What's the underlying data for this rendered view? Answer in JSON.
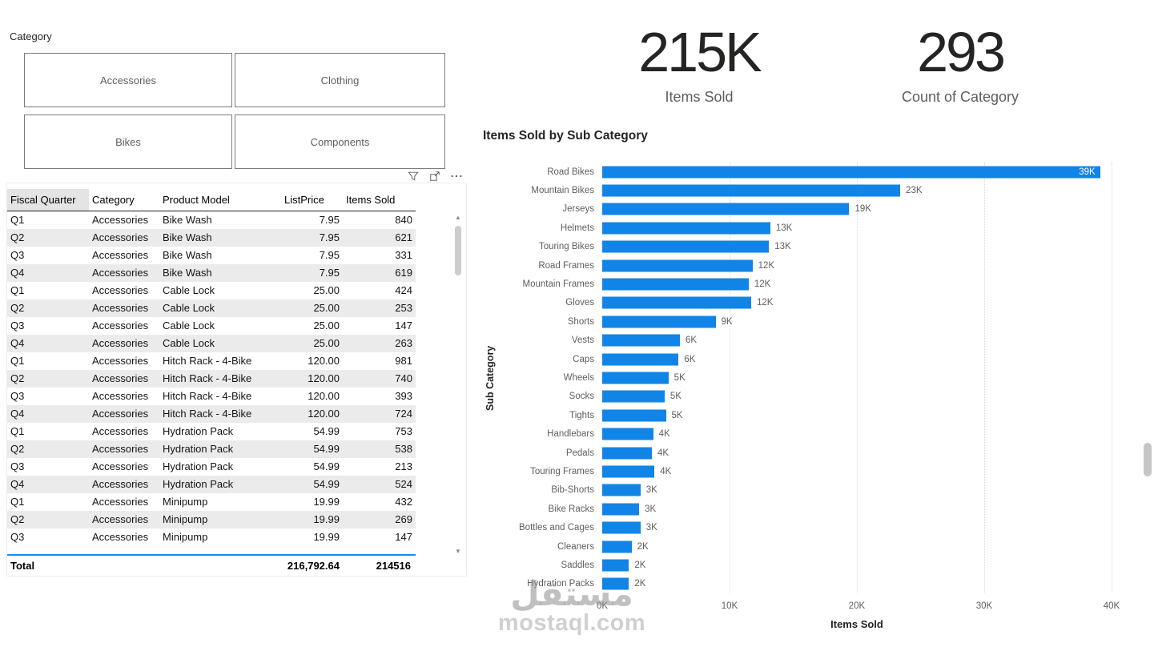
{
  "slicer": {
    "title": "Category",
    "items": [
      "Accessories",
      "Clothing",
      "Bikes",
      "Components"
    ]
  },
  "table_visual": {
    "visual_header_icons": [
      "filter",
      "focus-mode",
      "more-options"
    ],
    "columns": [
      {
        "label": "Fiscal Quarter",
        "align": "left"
      },
      {
        "label": "Category",
        "align": "left"
      },
      {
        "label": "Product Model",
        "align": "left"
      },
      {
        "label": "ListPrice",
        "align": "right"
      },
      {
        "label": "Items Sold",
        "align": "right"
      }
    ],
    "rows": [
      [
        "Q1",
        "Accessories",
        "Bike Wash",
        "7.95",
        "840"
      ],
      [
        "Q2",
        "Accessories",
        "Bike Wash",
        "7.95",
        "621"
      ],
      [
        "Q3",
        "Accessories",
        "Bike Wash",
        "7.95",
        "331"
      ],
      [
        "Q4",
        "Accessories",
        "Bike Wash",
        "7.95",
        "619"
      ],
      [
        "Q1",
        "Accessories",
        "Cable Lock",
        "25.00",
        "424"
      ],
      [
        "Q2",
        "Accessories",
        "Cable Lock",
        "25.00",
        "253"
      ],
      [
        "Q3",
        "Accessories",
        "Cable Lock",
        "25.00",
        "147"
      ],
      [
        "Q4",
        "Accessories",
        "Cable Lock",
        "25.00",
        "263"
      ],
      [
        "Q1",
        "Accessories",
        "Hitch Rack - 4-Bike",
        "120.00",
        "981"
      ],
      [
        "Q2",
        "Accessories",
        "Hitch Rack - 4-Bike",
        "120.00",
        "740"
      ],
      [
        "Q3",
        "Accessories",
        "Hitch Rack - 4-Bike",
        "120.00",
        "393"
      ],
      [
        "Q4",
        "Accessories",
        "Hitch Rack - 4-Bike",
        "120.00",
        "724"
      ],
      [
        "Q1",
        "Accessories",
        "Hydration Pack",
        "54.99",
        "753"
      ],
      [
        "Q2",
        "Accessories",
        "Hydration Pack",
        "54.99",
        "538"
      ],
      [
        "Q3",
        "Accessories",
        "Hydration Pack",
        "54.99",
        "213"
      ],
      [
        "Q4",
        "Accessories",
        "Hydration Pack",
        "54.99",
        "524"
      ],
      [
        "Q1",
        "Accessories",
        "Minipump",
        "19.99",
        "432"
      ],
      [
        "Q2",
        "Accessories",
        "Minipump",
        "19.99",
        "269"
      ],
      [
        "Q3",
        "Accessories",
        "Minipump",
        "19.99",
        "147"
      ]
    ],
    "total": {
      "label": "Total",
      "list_price": "216,792.64",
      "items_sold": "214516"
    }
  },
  "cards": [
    {
      "value": "215K",
      "label": "Items Sold"
    },
    {
      "value": "293",
      "label": "Count of Category"
    }
  ],
  "chart_data": {
    "type": "bar",
    "orientation": "horizontal",
    "title": "Items Sold by Sub Category",
    "xlabel": "Items Sold",
    "ylabel": "Sub Category",
    "xlim": [
      0,
      40
    ],
    "xticks": [
      "0K",
      "10K",
      "20K",
      "30K",
      "40K"
    ],
    "grid": "vertical-dotted",
    "legend": "none",
    "bar_color": "#1184E8",
    "units": "thousands",
    "categories": [
      "Road Bikes",
      "Mountain Bikes",
      "Jerseys",
      "Helmets",
      "Touring Bikes",
      "Road Frames",
      "Mountain Frames",
      "Gloves",
      "Shorts",
      "Vests",
      "Caps",
      "Wheels",
      "Socks",
      "Tights",
      "Handlebars",
      "Pedals",
      "Touring Frames",
      "Bib-Shorts",
      "Bike Racks",
      "Bottles and Cages",
      "Cleaners",
      "Saddles",
      "Hydration Packs"
    ],
    "values": [
      39.1,
      23.4,
      19.4,
      13.2,
      13.1,
      11.8,
      11.5,
      11.7,
      8.9,
      6.1,
      6.0,
      5.2,
      4.9,
      5.0,
      4.0,
      3.9,
      4.1,
      3.0,
      2.9,
      3.0,
      2.3,
      2.1,
      2.1
    ],
    "value_labels": [
      "39K",
      "23K",
      "19K",
      "13K",
      "13K",
      "12K",
      "12K",
      "12K",
      "9K",
      "6K",
      "6K",
      "5K",
      "5K",
      "5K",
      "4K",
      "4K",
      "4K",
      "3K",
      "3K",
      "3K",
      "2K",
      "2K",
      "2K"
    ]
  },
  "watermark": {
    "line1": "مستقل",
    "line2": "mostaql.com"
  },
  "accent_colors": {
    "bar_blue": "#1184E8",
    "total_divider_blue": "#118DFF",
    "text_dark": "#252423",
    "text_gray": "#605E5C"
  }
}
